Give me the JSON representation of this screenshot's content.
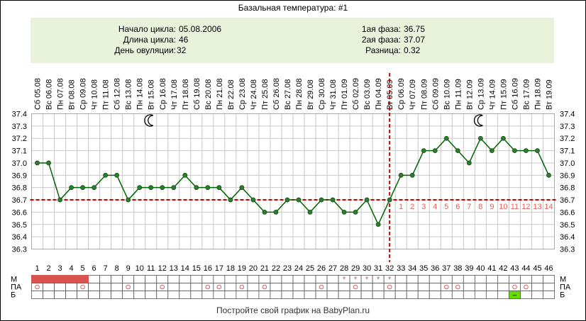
{
  "title": "Базальная температура: #1",
  "info": {
    "left": [
      {
        "label": "Начало цикла:",
        "value": "05.08.2006"
      },
      {
        "label": "Длина цикла:",
        "value": "46"
      },
      {
        "label": "День овуляции:",
        "value": "32"
      }
    ],
    "right": [
      {
        "label": "1ая фаза:",
        "value": "36.75"
      },
      {
        "label": "2ая фаза:",
        "value": "37.07"
      },
      {
        "label": "Разница:",
        "value": "0.32"
      }
    ]
  },
  "footer": "Постройте свой график на BabyPlan.ru",
  "colors": {
    "line": "#006400",
    "marker": "#2e7d2e",
    "coverline": "#cc0000",
    "grid": "#c8c8c8",
    "menses": "#d9534f",
    "phase_numbers": "#e06060",
    "b_marker": "#66dd00"
  },
  "icons": [
    "moon-icon",
    "moon-icon"
  ],
  "chart_data": {
    "type": "line",
    "dates": [
      "Сб 05.08",
      "Вс 06.08",
      "Пн 07.08",
      "Вт 08.08",
      "Ср 09.08",
      "Чт 10.08",
      "Пт 11.08",
      "Сб 12.08",
      "Вс 13.08",
      "Пн 14.08",
      "Вт 15.08",
      "Ср 16.08",
      "Чт 17.08",
      "Пт 18.08",
      "Сб 19.08",
      "Вс 20.08",
      "Пн 21.08",
      "Вт 22.08",
      "Ср 23.08",
      "Чт 24.08",
      "Пт 25.08",
      "Сб 26.08",
      "Вс 27.08",
      "Пн 28.08",
      "Вт 29.08",
      "Ср 30.08",
      "Чт 31.08",
      "Пт 01.09",
      "Сб 02.09",
      "Вс 03.09",
      "Пн 04.09",
      "Вт 05.09",
      "Ср 06.09",
      "Чт 07.09",
      "Пт 08.09",
      "Сб 09.09",
      "Вс 10.09",
      "Пн 11.09",
      "Вт 12.09",
      "Ср 13.09",
      "Чт 14.09",
      "Пт 15.09",
      "Сб 16.09",
      "Вс 17.09",
      "Пн 18.09",
      "Вт 19.09"
    ],
    "days": [
      1,
      2,
      3,
      4,
      5,
      6,
      7,
      8,
      9,
      10,
      11,
      12,
      13,
      14,
      15,
      16,
      17,
      18,
      19,
      20,
      21,
      22,
      23,
      24,
      25,
      26,
      27,
      28,
      29,
      30,
      31,
      32,
      33,
      34,
      35,
      36,
      37,
      38,
      39,
      40,
      41,
      42,
      43,
      44,
      45,
      46
    ],
    "values": [
      37.0,
      37.0,
      36.7,
      36.8,
      36.8,
      36.8,
      36.9,
      36.9,
      36.7,
      36.8,
      36.8,
      36.8,
      36.8,
      36.9,
      36.8,
      36.8,
      36.8,
      36.7,
      36.8,
      36.7,
      36.6,
      36.6,
      36.7,
      36.7,
      36.6,
      36.7,
      36.7,
      36.6,
      36.6,
      36.7,
      36.5,
      36.7,
      36.9,
      36.9,
      37.1,
      37.1,
      37.2,
      37.1,
      37.0,
      37.2,
      37.1,
      37.2,
      37.1,
      37.1,
      37.1,
      36.9
    ],
    "y_ticks": [
      "36.3",
      "36.4",
      "36.5",
      "36.6",
      "36.7",
      "36.8",
      "36.9",
      "37.0",
      "37.1",
      "37.2",
      "37.3",
      "37.4"
    ],
    "ylim": [
      36.3,
      37.4
    ],
    "coverline": 36.7,
    "ovulation_day": 32,
    "phase2_numbers": [
      "1",
      "2",
      "3",
      "4",
      "5",
      "6",
      "7",
      "8",
      "9",
      "10",
      "11",
      "12",
      "13",
      "14"
    ],
    "moon_days": [
      11,
      40
    ],
    "rows": [
      {
        "label": "М",
        "menses_days": [
          1,
          2,
          3,
          4,
          5
        ],
        "star_days": [
          28,
          29,
          30,
          31,
          32
        ]
      },
      {
        "label": "ПА",
        "circle_days": [
          1,
          5,
          9,
          12,
          16,
          17,
          19,
          21,
          26,
          29,
          32,
          37,
          38,
          43,
          44
        ]
      },
      {
        "label": "Б",
        "marker_days": [
          43
        ],
        "marker_text": "–"
      }
    ]
  }
}
